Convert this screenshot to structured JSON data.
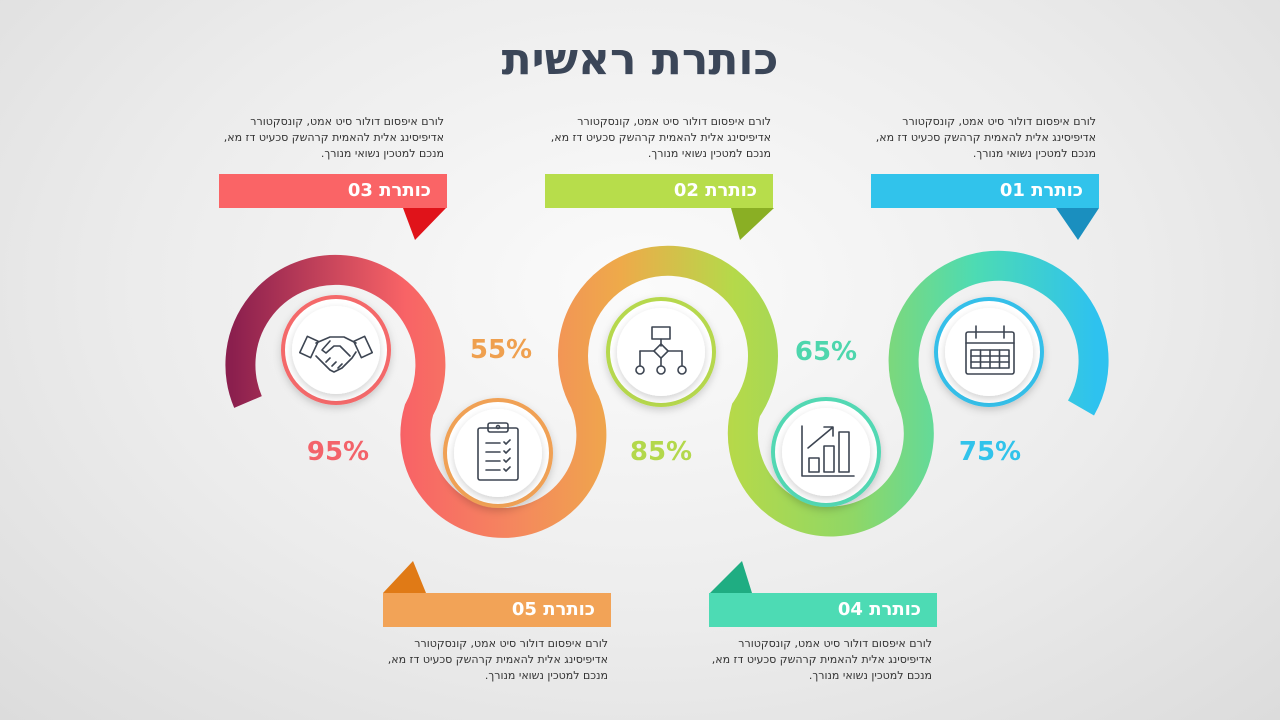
{
  "title": "כותרת ראשית",
  "items": [
    {
      "label": "כותרת",
      "num": "01",
      "text": "לורם איפסום דולור סיט אמט, קונסקטורר אדיפיסינג אלית להאמית קרהשק סכעיט דז מא, מנכם למטכין נשואי מנורך.",
      "percent": "75%",
      "color": "#31c3eb",
      "icon": "calendar-icon"
    },
    {
      "label": "כותרת",
      "num": "02",
      "text": "לורם איפסום דולור סיט אמט, קונסקטורר אדיפיסינג אלית להאמית קרהשק סכעיט דז מא, מנכם למטכין נשואי מנורך.",
      "percent": "85%",
      "color": "#b7d94a",
      "icon": "org-chart-icon"
    },
    {
      "label": "כותרת",
      "num": "03",
      "text": "לורם איפסום דולור סיט אמט, קונסקטורר אדיפיסינג אלית להאמית קרהשק סכעיט דז מא, מנכם למטכין נשואי מנורך.",
      "percent": "95%",
      "color": "#fa6466",
      "icon": "handshake-icon"
    },
    {
      "label": "כותרת",
      "num": "04",
      "text": "לורם איפסום דולור סיט אמט, קונסקטורר אדיפיסינג אלית להאמית קרהשק סכעיט דז מא, מנכם למטכין נשואי מנורך.",
      "percent": "65%",
      "color": "#4dd9b4",
      "icon": "bar-chart-icon"
    },
    {
      "label": "כותרת",
      "num": "05",
      "text": "לורם איפסום דולור סיט אמט, קונסקטורר אדיפיסינג אלית להאמית קרהשק סכעיט דז מא, מנכם למטכין נשואי מנורך.",
      "percent": "55%",
      "color": "#f1a153",
      "icon": "clipboard-icon"
    }
  ]
}
